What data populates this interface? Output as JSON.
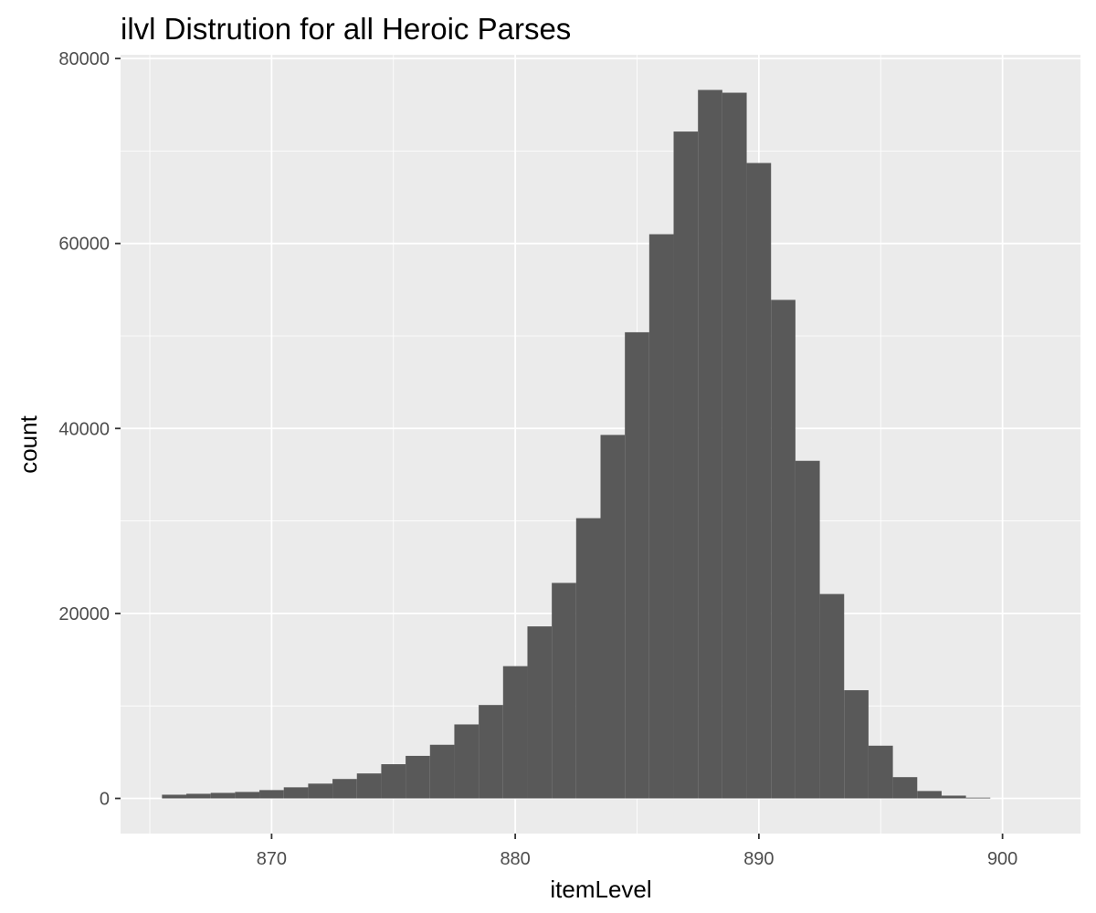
{
  "chart_data": {
    "type": "bar",
    "title": "ilvl Distrution for all Heroic Parses",
    "xlabel": "itemLevel",
    "ylabel": "count",
    "xlim": [
      863.8,
      903.2
    ],
    "ylim": [
      -3800,
      80400
    ],
    "x_ticks": [
      870,
      880,
      890,
      900
    ],
    "x_tick_labels": [
      "870",
      "880",
      "890",
      "900"
    ],
    "y_ticks": [
      0,
      20000,
      40000,
      60000,
      80000
    ],
    "y_tick_labels": [
      "0",
      "20000",
      "40000",
      "60000",
      "80000"
    ],
    "grid": true,
    "bin_width": 1,
    "bin_centers": [
      866,
      867,
      868,
      869,
      870,
      871,
      872,
      873,
      874,
      875,
      876,
      877,
      878,
      879,
      880,
      881,
      882,
      883,
      884,
      885,
      886,
      887,
      888,
      889,
      890,
      891,
      892,
      893,
      894,
      895,
      896,
      897,
      898,
      899
    ],
    "values": [
      400,
      500,
      600,
      700,
      900,
      1200,
      1600,
      2100,
      2700,
      3700,
      4600,
      5800,
      8000,
      10100,
      14300,
      18600,
      23300,
      30300,
      39300,
      50400,
      61000,
      72100,
      76600,
      76300,
      68700,
      53900,
      36500,
      22100,
      11700,
      5700,
      2300,
      800,
      300,
      80
    ],
    "colors": {
      "bar": "#595959",
      "panel": "#ebebeb",
      "grid_major": "#ffffff",
      "tick": "#333333",
      "tick_label": "#4d4d4d",
      "text": "#000000"
    }
  }
}
